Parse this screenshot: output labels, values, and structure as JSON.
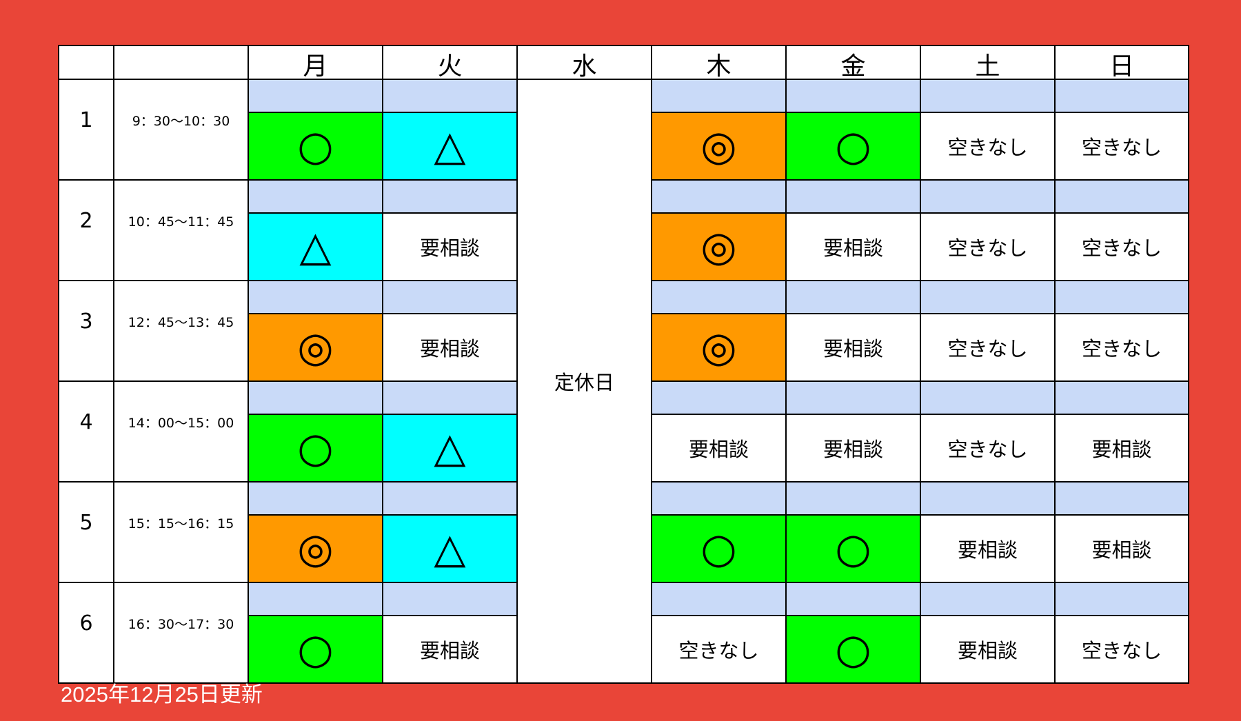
{
  "colors": {
    "background": "#E94538",
    "maru": "#00FF00",
    "sankaku": "#00FFFF",
    "nijumaru": "#FF9900",
    "subrow": "#C9DAF8"
  },
  "header": {
    "days": [
      "月",
      "火",
      "水",
      "木",
      "金",
      "土",
      "日"
    ]
  },
  "closed_day": {
    "day": "水",
    "label": "定休日"
  },
  "slots": [
    {
      "number": "1",
      "time": "9：30〜10：30",
      "cells": [
        "○",
        "△",
        "◎",
        "○",
        "空きなし",
        "空きなし"
      ]
    },
    {
      "number": "2",
      "time": "10：45〜11：45",
      "cells": [
        "△",
        "要相談",
        "◎",
        "要相談",
        "空きなし",
        "空きなし"
      ]
    },
    {
      "number": "3",
      "time": "12：45〜13：45",
      "cells": [
        "◎",
        "要相談",
        "◎",
        "要相談",
        "空きなし",
        "空きなし"
      ]
    },
    {
      "number": "4",
      "time": "14：00〜15：00",
      "cells": [
        "○",
        "△",
        "要相談",
        "要相談",
        "空きなし",
        "要相談"
      ]
    },
    {
      "number": "5",
      "time": "15：15〜16：15",
      "cells": [
        "◎",
        "△",
        "○",
        "○",
        "要相談",
        "要相談"
      ]
    },
    {
      "number": "6",
      "time": "16：30〜17：30",
      "cells": [
        "○",
        "要相談",
        "空きなし",
        "○",
        "要相談",
        "空きなし"
      ]
    }
  ],
  "footer": {
    "updated": "2025年12月25日更新"
  }
}
